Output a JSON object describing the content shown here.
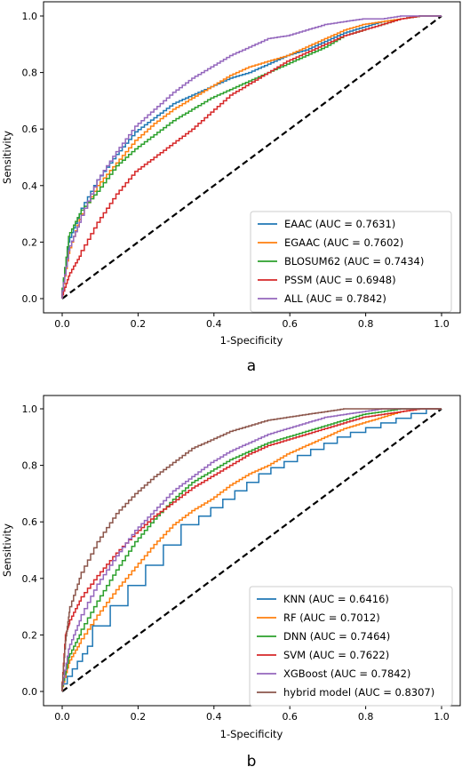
{
  "chart_data": [
    {
      "type": "line",
      "panel_label": "a",
      "xlabel": "1-Specificity",
      "ylabel": "Sensitivity",
      "xlim": [
        0,
        1
      ],
      "ylim": [
        0,
        1
      ],
      "xticks": [
        "0.0",
        "0.2",
        "0.4",
        "0.6",
        "0.8",
        "1.0"
      ],
      "yticks": [
        "0.0",
        "0.2",
        "0.4",
        "0.6",
        "0.8",
        "1.0"
      ],
      "grid": false,
      "legend_position": "lower-right",
      "diagonal": {
        "x": [
          0,
          1
        ],
        "y": [
          0,
          1
        ],
        "style": "dashed",
        "color": "#000000"
      },
      "series": [
        {
          "name": "EAAC (AUC = 0.7631)",
          "color": "#1f77b4",
          "x": [
            0,
            0.02,
            0.05,
            0.1,
            0.15,
            0.2,
            0.25,
            0.3,
            0.35,
            0.4,
            0.45,
            0.5,
            0.55,
            0.6,
            0.65,
            0.7,
            0.75,
            0.8,
            0.85,
            0.9,
            0.95,
            1.0
          ],
          "y": [
            0,
            0.2,
            0.3,
            0.42,
            0.51,
            0.59,
            0.64,
            0.69,
            0.72,
            0.75,
            0.78,
            0.8,
            0.83,
            0.86,
            0.88,
            0.91,
            0.94,
            0.96,
            0.98,
            0.99,
            1.0,
            1.0
          ]
        },
        {
          "name": "EGAAC (AUC = 0.7602)",
          "color": "#ff7f0e",
          "x": [
            0,
            0.02,
            0.05,
            0.1,
            0.15,
            0.2,
            0.25,
            0.3,
            0.35,
            0.4,
            0.45,
            0.5,
            0.55,
            0.6,
            0.65,
            0.7,
            0.75,
            0.8,
            0.85,
            0.9,
            0.95,
            1.0
          ],
          "y": [
            0,
            0.16,
            0.28,
            0.4,
            0.48,
            0.56,
            0.62,
            0.67,
            0.71,
            0.75,
            0.79,
            0.82,
            0.84,
            0.86,
            0.89,
            0.92,
            0.95,
            0.97,
            0.98,
            0.99,
            1.0,
            1.0
          ]
        },
        {
          "name": "BLOSUM62 (AUC = 0.7434)",
          "color": "#2ca02c",
          "x": [
            0,
            0.02,
            0.05,
            0.1,
            0.15,
            0.2,
            0.25,
            0.3,
            0.35,
            0.4,
            0.45,
            0.5,
            0.55,
            0.6,
            0.65,
            0.7,
            0.75,
            0.8,
            0.85,
            0.9,
            0.95,
            1.0
          ],
          "y": [
            0,
            0.22,
            0.3,
            0.38,
            0.47,
            0.53,
            0.58,
            0.63,
            0.67,
            0.71,
            0.74,
            0.77,
            0.8,
            0.83,
            0.86,
            0.89,
            0.93,
            0.95,
            0.97,
            0.99,
            1.0,
            1.0
          ]
        },
        {
          "name": "PSSM (AUC = 0.6948)",
          "color": "#d62728",
          "x": [
            0,
            0.02,
            0.05,
            0.1,
            0.15,
            0.2,
            0.25,
            0.3,
            0.35,
            0.4,
            0.45,
            0.5,
            0.55,
            0.6,
            0.65,
            0.7,
            0.75,
            0.8,
            0.85,
            0.9,
            0.95,
            1.0
          ],
          "y": [
            0,
            0.08,
            0.15,
            0.27,
            0.37,
            0.45,
            0.5,
            0.55,
            0.6,
            0.66,
            0.72,
            0.76,
            0.8,
            0.84,
            0.87,
            0.9,
            0.93,
            0.95,
            0.97,
            0.99,
            1.0,
            1.0
          ]
        },
        {
          "name": "ALL (AUC = 0.7842)",
          "color": "#9467bd",
          "x": [
            0,
            0.02,
            0.05,
            0.1,
            0.15,
            0.2,
            0.25,
            0.3,
            0.35,
            0.4,
            0.45,
            0.5,
            0.55,
            0.6,
            0.65,
            0.7,
            0.75,
            0.8,
            0.85,
            0.9,
            0.95,
            1.0
          ],
          "y": [
            0,
            0.17,
            0.27,
            0.42,
            0.52,
            0.61,
            0.67,
            0.73,
            0.78,
            0.82,
            0.86,
            0.89,
            0.92,
            0.93,
            0.95,
            0.97,
            0.98,
            0.99,
            0.99,
            1.0,
            1.0,
            1.0
          ]
        }
      ]
    },
    {
      "type": "line",
      "panel_label": "b",
      "xlabel": "1-Specificity",
      "ylabel": "Sensitivity",
      "xlim": [
        0,
        1
      ],
      "ylim": [
        0,
        1
      ],
      "xticks": [
        "0.0",
        "0.2",
        "0.4",
        "0.6",
        "0.8",
        "1.0"
      ],
      "yticks": [
        "0.0",
        "0.2",
        "0.4",
        "0.6",
        "0.8",
        "1.0"
      ],
      "grid": false,
      "legend_position": "lower-right",
      "diagonal": {
        "x": [
          0,
          1
        ],
        "y": [
          0,
          1
        ],
        "style": "dashed",
        "color": "#000000"
      },
      "series": [
        {
          "name": "KNN (AUC = 0.6416)",
          "color": "#1f77b4",
          "x": [
            0,
            0.08,
            0.36,
            0.55,
            0.76,
            1.0
          ],
          "y": [
            0,
            0.16,
            0.59,
            0.77,
            0.9,
            1.0
          ]
        },
        {
          "name": "RF (AUC = 0.7012)",
          "color": "#ff7f0e",
          "x": [
            0,
            0.02,
            0.05,
            0.1,
            0.15,
            0.2,
            0.25,
            0.3,
            0.35,
            0.4,
            0.45,
            0.5,
            0.55,
            0.6,
            0.65,
            0.7,
            0.75,
            0.8,
            0.85,
            0.9,
            0.95,
            1.0
          ],
          "y": [
            0,
            0.1,
            0.17,
            0.27,
            0.36,
            0.44,
            0.52,
            0.59,
            0.64,
            0.68,
            0.73,
            0.77,
            0.8,
            0.84,
            0.87,
            0.9,
            0.93,
            0.95,
            0.97,
            0.99,
            1.0,
            1.0
          ]
        },
        {
          "name": "DNN (AUC = 0.7464)",
          "color": "#2ca02c",
          "x": [
            0,
            0.02,
            0.05,
            0.1,
            0.15,
            0.2,
            0.25,
            0.3,
            0.35,
            0.4,
            0.45,
            0.5,
            0.55,
            0.6,
            0.65,
            0.7,
            0.75,
            0.8,
            0.85,
            0.9,
            0.95,
            1.0
          ],
          "y": [
            0,
            0.12,
            0.2,
            0.32,
            0.43,
            0.53,
            0.61,
            0.68,
            0.74,
            0.78,
            0.82,
            0.85,
            0.88,
            0.9,
            0.92,
            0.94,
            0.96,
            0.98,
            0.99,
            1.0,
            1.0,
            1.0
          ]
        },
        {
          "name": "SVM (AUC = 0.7622)",
          "color": "#d62728",
          "x": [
            0,
            0.01,
            0.02,
            0.05,
            0.1,
            0.15,
            0.2,
            0.25,
            0.3,
            0.35,
            0.4,
            0.45,
            0.5,
            0.55,
            0.6,
            0.65,
            0.7,
            0.75,
            0.8,
            0.85,
            0.9,
            0.95,
            1.0
          ],
          "y": [
            0,
            0.2,
            0.24,
            0.32,
            0.41,
            0.49,
            0.56,
            0.62,
            0.67,
            0.72,
            0.76,
            0.8,
            0.84,
            0.87,
            0.89,
            0.91,
            0.93,
            0.95,
            0.97,
            0.98,
            0.99,
            1.0,
            1.0
          ]
        },
        {
          "name": "XGBoost (AUC = 0.7842)",
          "color": "#9467bd",
          "x": [
            0,
            0.02,
            0.05,
            0.1,
            0.15,
            0.2,
            0.25,
            0.3,
            0.35,
            0.4,
            0.45,
            0.5,
            0.55,
            0.6,
            0.65,
            0.7,
            0.75,
            0.8,
            0.85,
            0.9,
            0.95,
            1.0
          ],
          "y": [
            0,
            0.15,
            0.25,
            0.38,
            0.48,
            0.57,
            0.64,
            0.71,
            0.76,
            0.81,
            0.85,
            0.88,
            0.91,
            0.93,
            0.95,
            0.97,
            0.98,
            0.99,
            1.0,
            1.0,
            1.0,
            1.0
          ]
        },
        {
          "name": "hybrid model (AUC = 0.8307)",
          "color": "#8c564b",
          "x": [
            0,
            0.01,
            0.02,
            0.05,
            0.1,
            0.15,
            0.2,
            0.25,
            0.3,
            0.35,
            0.4,
            0.45,
            0.5,
            0.55,
            0.6,
            0.65,
            0.7,
            0.75,
            0.8,
            0.85,
            0.9,
            0.95,
            1.0
          ],
          "y": [
            0,
            0.18,
            0.28,
            0.4,
            0.53,
            0.63,
            0.7,
            0.76,
            0.81,
            0.86,
            0.89,
            0.92,
            0.94,
            0.96,
            0.97,
            0.98,
            0.99,
            1.0,
            1.0,
            1.0,
            1.0,
            1.0,
            1.0
          ]
        }
      ]
    }
  ]
}
